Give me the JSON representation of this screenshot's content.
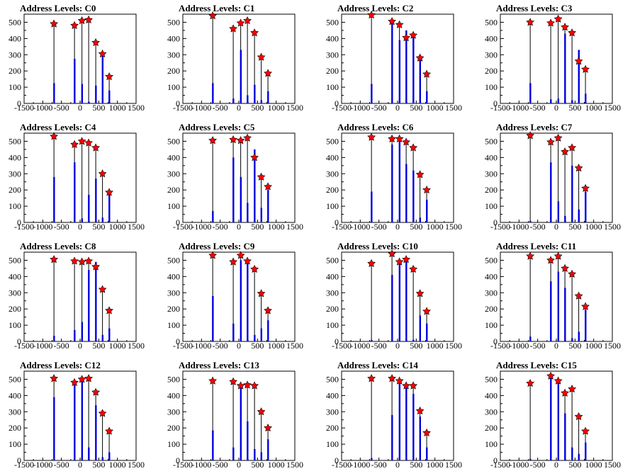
{
  "figure": {
    "xlim": [
      -1500,
      1500
    ],
    "ylim": [
      0,
      550
    ],
    "x_ticks": [
      "-1500",
      "-1000",
      "-500",
      "0",
      "500",
      "1000",
      "1500"
    ],
    "y_ticks": [
      "0",
      "100",
      "200",
      "300",
      "400",
      "500"
    ],
    "bar_color": "#0000dd",
    "marker_color": "#ff0000",
    "peak_x": [
      -700,
      -150,
      50,
      230,
      420,
      600,
      780
    ]
  },
  "chart_data": [
    {
      "type": "bar",
      "title": "Address Levels: C0",
      "peaks": [
        490,
        480,
        510,
        515,
        375,
        305,
        165
      ],
      "bars": [
        125,
        275,
        120,
        10,
        110,
        300,
        80
      ]
    },
    {
      "type": "bar",
      "title": "Address Levels: C1",
      "peaks": [
        540,
        460,
        495,
        510,
        435,
        285,
        185
      ],
      "bars": [
        125,
        30,
        330,
        50,
        115,
        20,
        75
      ]
    },
    {
      "type": "bar",
      "title": "Address Levels: C2",
      "peaks": [
        545,
        505,
        485,
        405,
        420,
        280,
        180
      ],
      "bars": [
        120,
        500,
        390,
        450,
        430,
        300,
        75
      ]
    },
    {
      "type": "bar",
      "title": "Address Levels: C3",
      "peaks": [
        500,
        495,
        520,
        470,
        435,
        260,
        210
      ],
      "bars": [
        125,
        25,
        30,
        430,
        20,
        330,
        60
      ]
    },
    {
      "type": "bar",
      "title": "Address Levels: C4",
      "peaks": [
        530,
        480,
        500,
        490,
        460,
        300,
        185
      ],
      "bars": [
        280,
        370,
        25,
        170,
        270,
        30,
        200
      ]
    },
    {
      "type": "bar",
      "title": "Address Levels: C5",
      "peaks": [
        505,
        510,
        505,
        520,
        400,
        280,
        220
      ],
      "bars": [
        70,
        400,
        280,
        120,
        450,
        90,
        200
      ]
    },
    {
      "type": "bar",
      "title": "Address Levels: C6",
      "peaks": [
        525,
        515,
        515,
        495,
        460,
        295,
        200
      ],
      "bars": [
        190,
        480,
        500,
        360,
        320,
        30,
        140
      ]
    },
    {
      "type": "bar",
      "title": "Address Levels: C7",
      "peaks": [
        535,
        495,
        520,
        435,
        460,
        335,
        210
      ],
      "bars": [
        10,
        370,
        130,
        40,
        350,
        80,
        190
      ]
    },
    {
      "type": "bar",
      "title": "Address Levels: C8",
      "peaks": [
        505,
        495,
        490,
        495,
        460,
        320,
        190
      ],
      "bars": [
        35,
        70,
        120,
        440,
        490,
        40,
        80
      ]
    },
    {
      "type": "bar",
      "title": "Address Levels: C9",
      "peaks": [
        530,
        490,
        530,
        495,
        445,
        295,
        190
      ],
      "bars": [
        280,
        110,
        500,
        510,
        40,
        80,
        130
      ]
    },
    {
      "type": "bar",
      "title": "Address Levels: C10",
      "peaks": [
        480,
        540,
        490,
        505,
        445,
        295,
        185
      ],
      "bars": [
        10,
        410,
        500,
        490,
        10,
        160,
        110
      ]
    },
    {
      "type": "bar",
      "title": "Address Levels: C11",
      "peaks": [
        525,
        500,
        525,
        450,
        415,
        280,
        215
      ],
      "bars": [
        30,
        370,
        430,
        330,
        20,
        60,
        195
      ]
    },
    {
      "type": "bar",
      "title": "Address Levels: C12",
      "peaks": [
        505,
        480,
        500,
        505,
        420,
        290,
        180
      ],
      "bars": [
        390,
        480,
        500,
        80,
        340,
        20,
        50
      ]
    },
    {
      "type": "bar",
      "title": "Address Levels: C13",
      "peaks": [
        490,
        485,
        460,
        465,
        460,
        300,
        200
      ],
      "bars": [
        185,
        80,
        470,
        240,
        70,
        50,
        130
      ]
    },
    {
      "type": "bar",
      "title": "Address Levels: C14",
      "peaks": [
        505,
        505,
        490,
        460,
        460,
        305,
        170
      ],
      "bars": [
        15,
        280,
        480,
        470,
        410,
        270,
        80
      ]
    },
    {
      "type": "bar",
      "title": "Address Levels: C15",
      "peaks": [
        475,
        520,
        490,
        415,
        440,
        270,
        180
      ],
      "bars": [
        10,
        510,
        490,
        290,
        80,
        40,
        110
      ]
    }
  ]
}
